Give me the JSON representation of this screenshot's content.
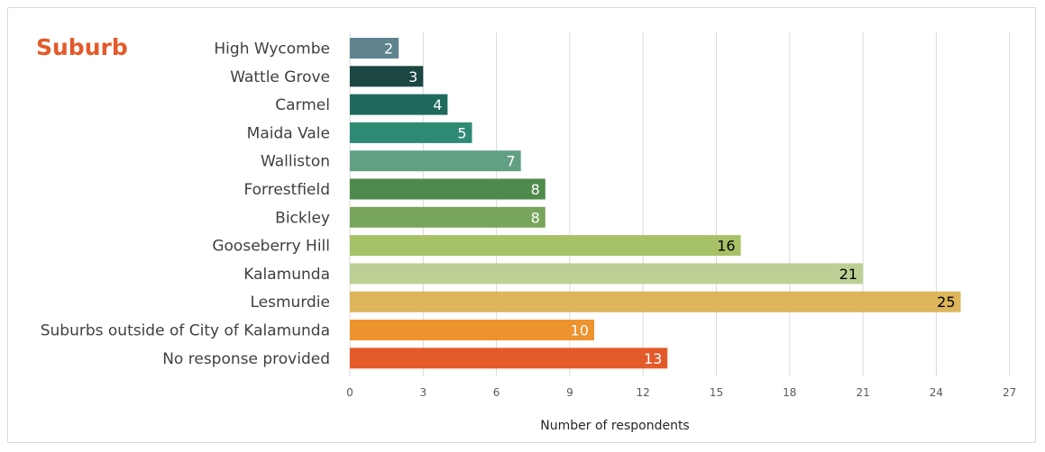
{
  "chart_data": {
    "type": "bar",
    "orientation": "horizontal",
    "title": "Suburb",
    "xlabel": "Number of respondents",
    "ylabel": "",
    "xlim": [
      0,
      27
    ],
    "xticks": [
      0,
      3,
      6,
      9,
      12,
      15,
      18,
      21,
      24,
      27
    ],
    "grid": "vertical",
    "categories": [
      "High Wycombe",
      "Wattle Grove",
      "Carmel",
      "Maida Vale",
      "Walliston",
      "Forrestfield",
      "Bickley",
      "Gooseberry Hill",
      "Kalamunda",
      "Lesmurdie",
      "Suburbs outside of City of Kalamunda",
      "No response provided"
    ],
    "values": [
      2,
      3,
      4,
      5,
      7,
      8,
      8,
      16,
      21,
      25,
      10,
      13
    ],
    "bar_colors": [
      "#5e838f",
      "#1c4641",
      "#1e6a5c",
      "#2f8a74",
      "#62a083",
      "#4e8a4c",
      "#77a55c",
      "#a7c167",
      "#bcd095",
      "#dcb55c",
      "#ec922e",
      "#e35a2b"
    ],
    "label_colors": [
      "#ffffff",
      "#ffffff",
      "#ffffff",
      "#ffffff",
      "#ffffff",
      "#ffffff",
      "#ffffff",
      "#000000",
      "#000000",
      "#000000",
      "#ffffff",
      "#ffffff"
    ]
  }
}
